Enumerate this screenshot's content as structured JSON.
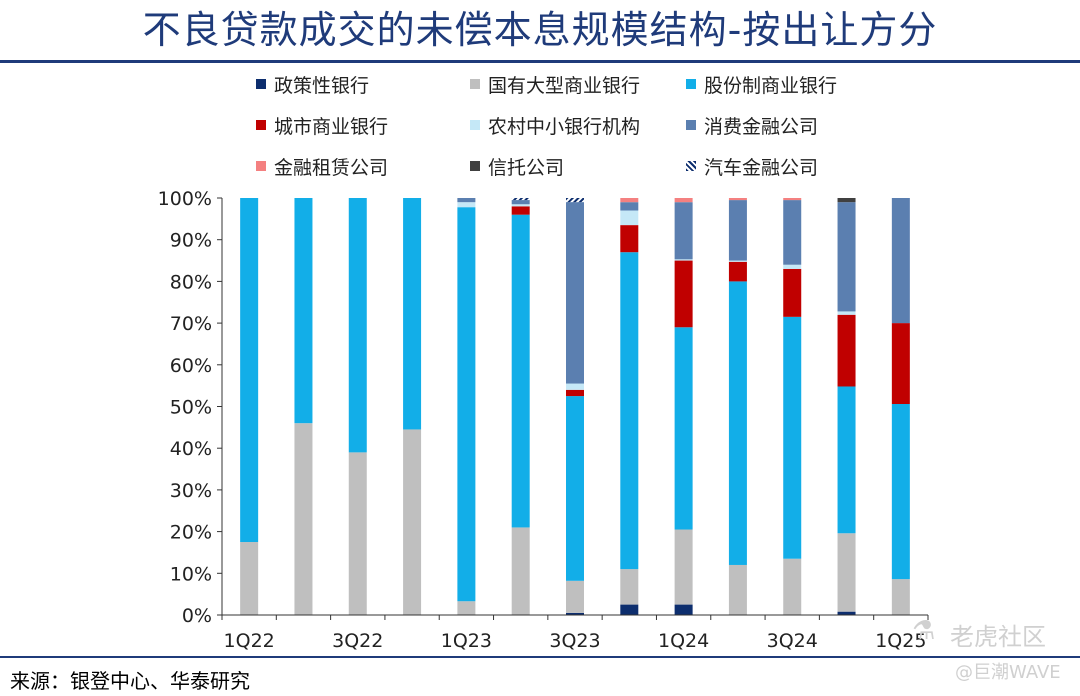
{
  "title": "不良贷款成交的未偿本息规模结构-按出让方分",
  "source": "来源：银登中心、华泰研究",
  "watermark": {
    "line1": "老虎社区",
    "line2": "@巨潮WAVE",
    "icon": "tiger-logo-icon"
  },
  "colors": {
    "policy_bank": "#0d2e6e",
    "large_state_bank": "#bfbfbf",
    "joint_stock_bank": "#12aee8",
    "city_commercial_bank": "#c00000",
    "rural_bank": "#c5e8f7",
    "consumer_finance": "#5b7fb0",
    "financial_leasing": "#f48080",
    "trust": "#404040",
    "auto_finance": "#0d2e6e"
  },
  "chart_data": {
    "type": "bar",
    "stacked": true,
    "categories": [
      "1Q22",
      "2Q22",
      "3Q22",
      "4Q22",
      "1Q23",
      "2Q23",
      "3Q23",
      "4Q23",
      "1Q24",
      "2Q24",
      "3Q24",
      "4Q24",
      "1Q25"
    ],
    "tick_labels": [
      "1Q22",
      "",
      "3Q22",
      "",
      "1Q23",
      "",
      "3Q23",
      "",
      "1Q24",
      "",
      "3Q24",
      "",
      "1Q25"
    ],
    "ylim": [
      0,
      100
    ],
    "yticks": [
      "0%",
      "10%",
      "20%",
      "30%",
      "40%",
      "50%",
      "60%",
      "70%",
      "80%",
      "90%",
      "100%"
    ],
    "legend_position": "top",
    "series": [
      {
        "key": "policy_bank",
        "name": "政策性银行",
        "values": [
          0,
          0,
          0,
          0,
          0,
          0,
          0.5,
          2.5,
          2.5,
          0,
          0,
          0.8,
          0
        ]
      },
      {
        "key": "large_state_bank",
        "name": "国有大型商业银行",
        "values": [
          17.5,
          46,
          39,
          44.5,
          3.3,
          21,
          7.7,
          8.5,
          18,
          12,
          13.5,
          18.8,
          8.6
        ]
      },
      {
        "key": "joint_stock_bank",
        "name": "股份制商业银行",
        "values": [
          82.5,
          54,
          61,
          55.5,
          94.5,
          75,
          44.3,
          76,
          48.5,
          68,
          58,
          35.2,
          42
        ]
      },
      {
        "key": "city_commercial_bank",
        "name": "城市商业银行",
        "values": [
          0,
          0,
          0,
          0,
          0,
          2,
          1.5,
          6.5,
          16,
          4.7,
          11.5,
          17.2,
          19.4
        ]
      },
      {
        "key": "rural_bank",
        "name": "农村中小银行机构",
        "values": [
          0,
          0,
          0,
          0,
          1.2,
          0.5,
          1.5,
          3.5,
          0.3,
          0.3,
          1,
          0.8,
          0
        ]
      },
      {
        "key": "consumer_finance",
        "name": "消费金融公司",
        "values": [
          0,
          0,
          0,
          0,
          1,
          1,
          43.5,
          2,
          13.7,
          14.5,
          15.5,
          26.2,
          30
        ]
      },
      {
        "key": "financial_leasing",
        "name": "金融租赁公司",
        "values": [
          0,
          0,
          0,
          0,
          0,
          0,
          0,
          1,
          1,
          0.5,
          0.5,
          0,
          0
        ]
      },
      {
        "key": "trust",
        "name": "信托公司",
        "values": [
          0,
          0,
          0,
          0,
          0,
          0,
          0,
          0,
          0,
          0,
          0,
          1,
          0
        ]
      },
      {
        "key": "auto_finance",
        "name": "汽车金融公司",
        "values": [
          0,
          0,
          0,
          0,
          0,
          0.5,
          1,
          0,
          0,
          0,
          0,
          0,
          0
        ]
      }
    ]
  }
}
